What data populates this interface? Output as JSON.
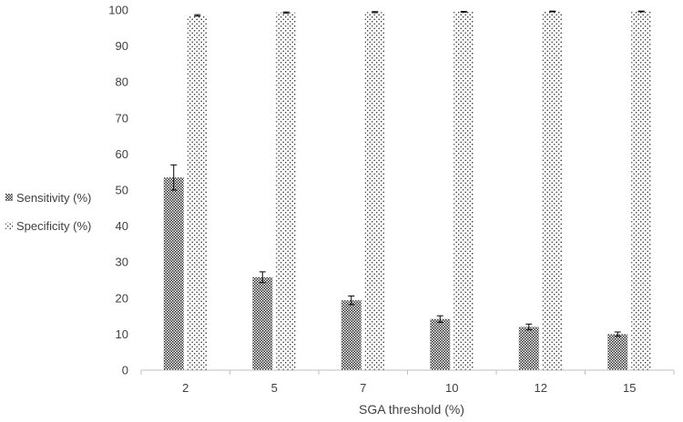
{
  "chart_data": {
    "type": "bar",
    "title": "",
    "xlabel": "SGA threshold (%)",
    "ylabel": "",
    "ylim": [
      0,
      100
    ],
    "yticks": [
      0,
      10,
      20,
      30,
      40,
      50,
      60,
      70,
      80,
      90,
      100
    ],
    "categories": [
      "2",
      "5",
      "7",
      "10",
      "12",
      "15"
    ],
    "grid": false,
    "legend_position": "left",
    "series": [
      {
        "name": "Sensitivity (%)",
        "pattern": "crosshatch",
        "color": "#333333",
        "values": [
          53.5,
          25.8,
          19.4,
          14.2,
          12.0,
          10.0
        ],
        "error": [
          3.5,
          1.5,
          1.2,
          0.9,
          0.8,
          0.6
        ]
      },
      {
        "name": "Specificity (%)",
        "pattern": "dots",
        "color": "#222222",
        "values": [
          98.5,
          99.3,
          99.4,
          99.5,
          99.6,
          99.6
        ],
        "error": [
          0.2,
          0.15,
          0.15,
          0.1,
          0.1,
          0.1
        ]
      }
    ]
  }
}
